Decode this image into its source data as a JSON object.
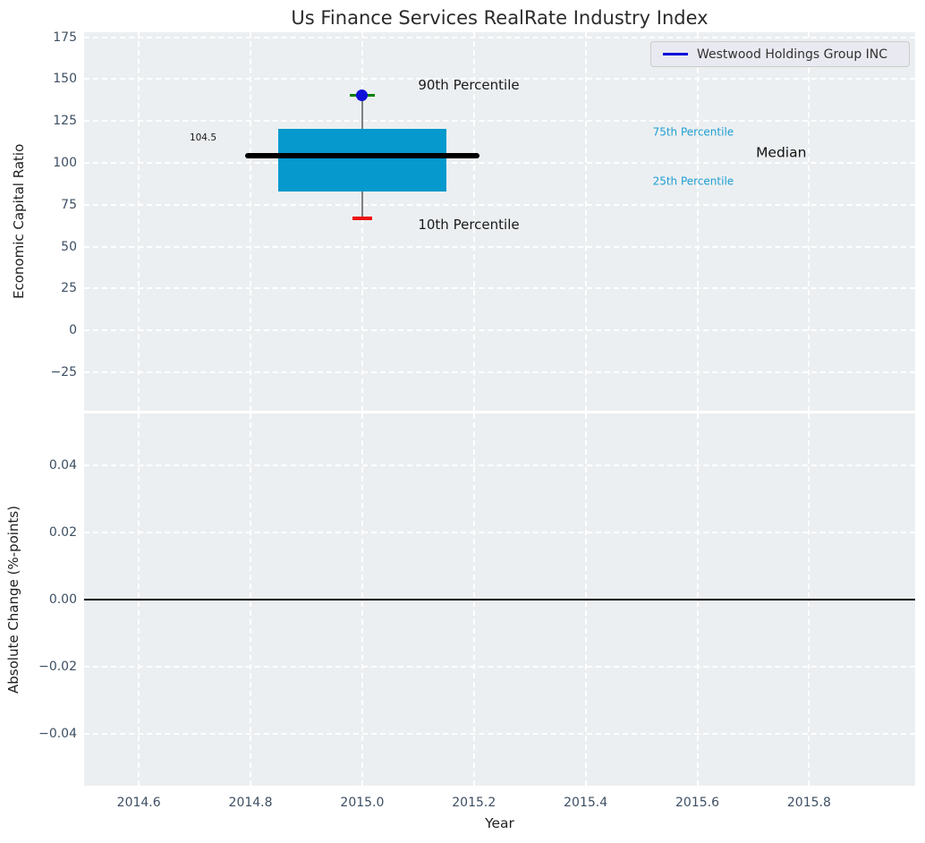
{
  "figure": {
    "title": "Us Finance Services RealRate Industry Index",
    "legend": {
      "label": "Westwood Holdings Group INC",
      "position": "upper right"
    }
  },
  "colors": {
    "plot_bg": "#eceff1",
    "grid": "#ffffff",
    "tick_label": "#3d4f63",
    "title": "#2b2b2b",
    "axis_label": "#1f1f1f",
    "box_fill": "#0599cd",
    "median_line": "#000000",
    "whisker": "#7f7f7f",
    "p90_cap": "#008000",
    "p10_cap": "#ee1111",
    "company_dot": "#1010d9",
    "zero_line": "#000000",
    "percentile_text": "#1f9ed1",
    "legend_bg": "#e9e9f1"
  },
  "chart_data": [
    {
      "type": "boxplot",
      "title": "Us Finance Services RealRate Industry Index",
      "xlabel": "",
      "ylabel": "Economic Capital Ratio",
      "ylim": [
        -48,
        178
      ],
      "xlim": [
        2014.502,
        2015.99
      ],
      "grid": true,
      "yticks": [
        {
          "v": 175,
          "label": "175"
        },
        {
          "v": 150,
          "label": "150"
        },
        {
          "v": 125,
          "label": "125"
        },
        {
          "v": 100,
          "label": "100"
        },
        {
          "v": 75,
          "label": "75"
        },
        {
          "v": 50,
          "label": "50"
        },
        {
          "v": 25,
          "label": "25"
        },
        {
          "v": 0,
          "label": "0"
        },
        {
          "v": -25,
          "label": "−25"
        }
      ],
      "xticks": [
        {
          "v": 2014.6,
          "label": "2014.6"
        },
        {
          "v": 2014.8,
          "label": "2014.8"
        },
        {
          "v": 2015.0,
          "label": "2015.0"
        },
        {
          "v": 2015.2,
          "label": "2015.2"
        },
        {
          "v": 2015.4,
          "label": "2015.4"
        },
        {
          "v": 2015.6,
          "label": "2015.6"
        },
        {
          "v": 2015.8,
          "label": "2015.8"
        }
      ],
      "show_xticklabels": false,
      "box": {
        "x": 2015.0,
        "median": 104.5,
        "q1": 83,
        "q3": 120.5,
        "p10": 67,
        "p90": 140.5,
        "box_halfwidth": 0.15,
        "median_halfwidth": 0.21
      },
      "series": [
        {
          "name": "Westwood Holdings Group INC",
          "x": [
            2015.0
          ],
          "y": [
            140.5
          ]
        }
      ],
      "annotations": [
        {
          "name": "median-value-label",
          "text": "104.5",
          "x": 2014.715,
          "y": 114.5,
          "color": "#1a1a1a",
          "size": 10.5,
          "ha": "center"
        },
        {
          "name": "p90-label",
          "text": "90th Percentile",
          "x": 2015.1,
          "y": 146.5,
          "color": "#1a1a1a",
          "size": 15,
          "ha": "left"
        },
        {
          "name": "p10-label",
          "text": "10th Percentile",
          "x": 2015.1,
          "y": 63,
          "color": "#1a1a1a",
          "size": 15,
          "ha": "left"
        },
        {
          "name": "p75-label",
          "text": "75th Percentile",
          "x": 2015.52,
          "y": 118,
          "color": "#1f9ed1",
          "size": 12,
          "ha": "left"
        },
        {
          "name": "p25-label",
          "text": "25th Percentile",
          "x": 2015.52,
          "y": 89,
          "color": "#1f9ed1",
          "size": 12,
          "ha": "left"
        },
        {
          "name": "median-label",
          "text": "Median",
          "x": 2015.705,
          "y": 106,
          "color": "#111111",
          "size": 15.5,
          "ha": "left"
        }
      ],
      "legend": [
        "Westwood Holdings Group INC"
      ]
    },
    {
      "type": "line",
      "xlabel": "Year",
      "ylabel": "Absolute Change (%-points)",
      "ylim": [
        -0.0555,
        0.0555
      ],
      "xlim": [
        2014.502,
        2015.99
      ],
      "grid": true,
      "yticks": [
        {
          "v": 0.04,
          "label": "0.04"
        },
        {
          "v": 0.02,
          "label": "0.02"
        },
        {
          "v": 0.0,
          "label": "0.00"
        },
        {
          "v": -0.02,
          "label": "−0.02"
        },
        {
          "v": -0.04,
          "label": "−0.04"
        }
      ],
      "xticks": [
        {
          "v": 2014.6,
          "label": "2014.6"
        },
        {
          "v": 2014.8,
          "label": "2014.8"
        },
        {
          "v": 2015.0,
          "label": "2015.0"
        },
        {
          "v": 2015.2,
          "label": "2015.2"
        },
        {
          "v": 2015.4,
          "label": "2015.4"
        },
        {
          "v": 2015.6,
          "label": "2015.6"
        },
        {
          "v": 2015.8,
          "label": "2015.8"
        }
      ],
      "show_xticklabels": true,
      "zero_line": 0.0,
      "series": []
    }
  ]
}
